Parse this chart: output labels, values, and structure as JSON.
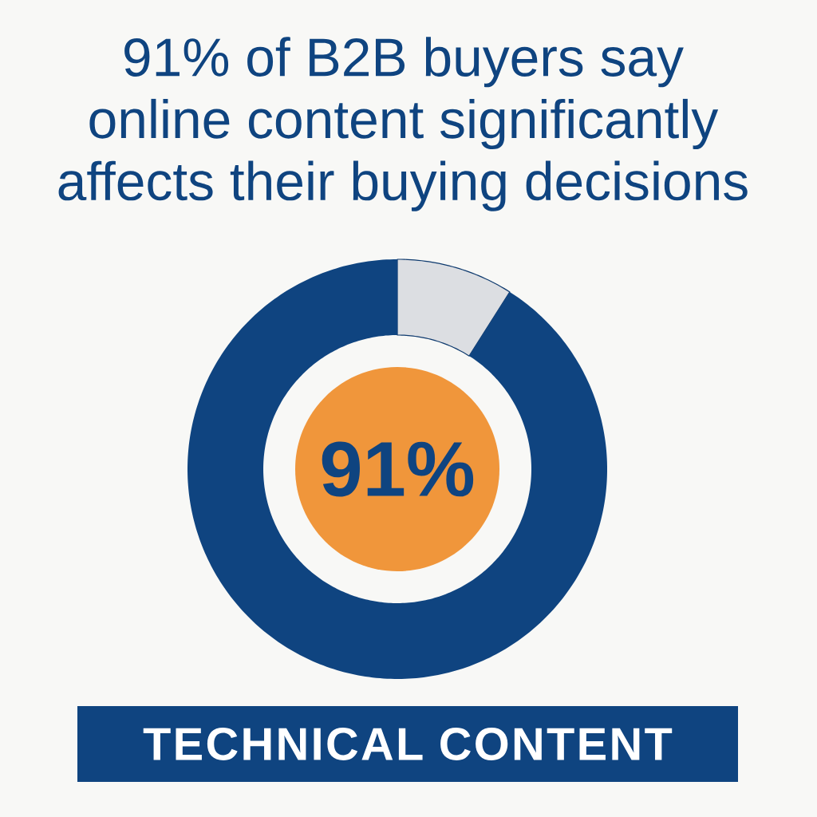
{
  "chart_data": {
    "type": "donut",
    "title": "91% of B2B buyers say online content significantly affects their buying decisions",
    "categories": [
      null,
      null
    ],
    "values": [
      9,
      91
    ],
    "colors": [
      "#dcdee2",
      "#0f4480"
    ],
    "value_labels": [
      null,
      "91%"
    ],
    "annotations": [
      "TECHNICAL CONTENT"
    ]
  }
}
